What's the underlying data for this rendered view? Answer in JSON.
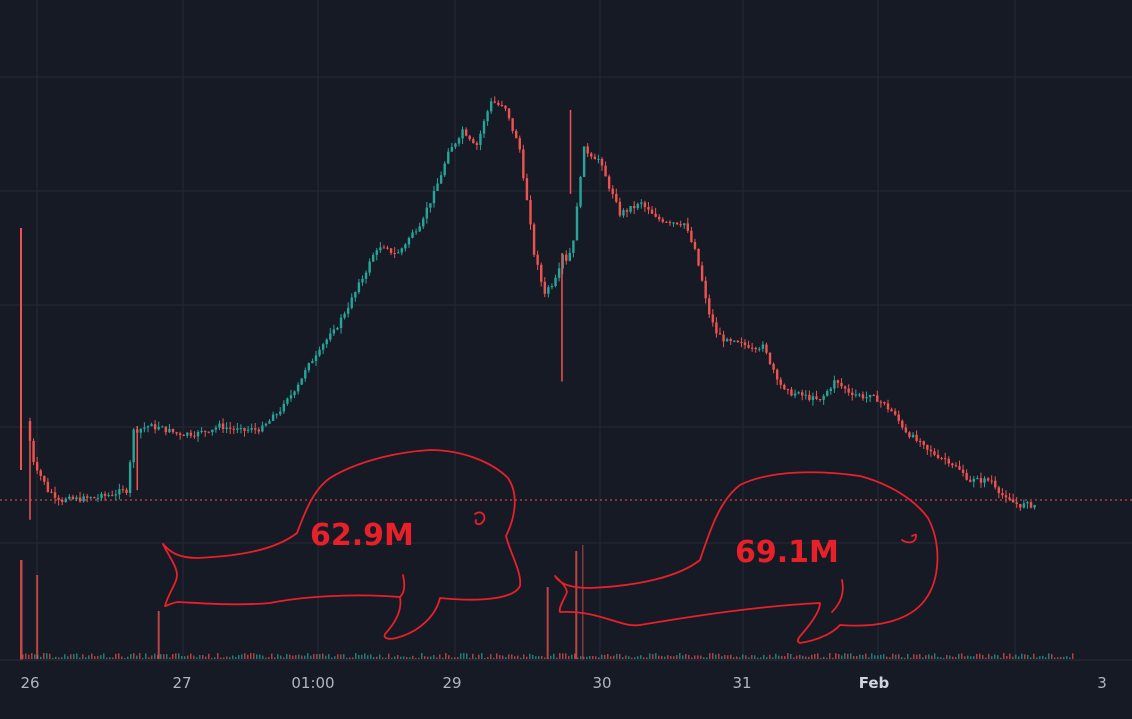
{
  "colors": {
    "background": "#161a25",
    "grid": "#242936",
    "up": "#26a69a",
    "down": "#ef5350",
    "price_line": "#ef5350",
    "annotation": "#e8202a",
    "axis_text": "#b2b5be",
    "axis_bg": "#1e222d"
  },
  "chart_data": {
    "type": "candlestick",
    "title": "",
    "xlabel": "",
    "ylabel": "",
    "x_ticks": [
      "26",
      "27",
      "01:00",
      "29",
      "30",
      "31",
      "Feb",
      "3"
    ],
    "bold_ticks": [
      "Feb"
    ],
    "y_axis_visible": false,
    "grid": true,
    "price_series": {
      "name": "",
      "x": [
        0.0,
        0.05,
        0.15,
        0.25,
        0.5,
        0.7,
        0.75,
        0.85,
        0.95,
        1.0,
        1.05,
        1.1,
        1.2,
        1.35,
        1.5,
        1.65,
        1.8,
        1.95,
        2.05,
        2.15,
        2.3,
        2.45,
        2.6,
        2.75,
        2.85,
        2.95,
        3.05,
        3.15,
        3.25,
        3.35,
        3.45,
        3.55,
        3.62,
        3.68,
        3.72,
        3.75,
        3.78,
        3.81,
        3.84,
        3.86,
        3.9,
        4.0,
        4.15,
        4.3,
        4.4,
        4.6,
        4.68,
        4.72,
        4.76,
        4.82,
        4.9,
        5.0,
        5.15,
        5.3,
        5.45,
        5.55,
        5.65,
        5.75,
        5.85,
        5.95,
        6.05,
        6.15,
        6.3,
        6.45,
        6.6,
        6.75,
        6.85,
        6.95,
        7.05
      ],
      "y": [
        50,
        42,
        36,
        34,
        34.5,
        36,
        48,
        49,
        48.5,
        48,
        47.5,
        47.5,
        47.5,
        49,
        48,
        48.5,
        53,
        60,
        65,
        68,
        76,
        85,
        84,
        90,
        96,
        104,
        109,
        106,
        115,
        113,
        105,
        84,
        76,
        78,
        81,
        84,
        82.5,
        85,
        89,
        97,
        105,
        103,
        92,
        94,
        91,
        90,
        84,
        79,
        73,
        68,
        66,
        65.5,
        65,
        56,
        55,
        54,
        58,
        56,
        55,
        54.5,
        52,
        48,
        44,
        42,
        38,
        38,
        34,
        33,
        33
      ]
    },
    "volume_series": {
      "name": "",
      "spikes": [
        {
          "x": 0.05,
          "value": 14
        },
        {
          "x": 0.9,
          "value": 8
        },
        {
          "x": 3.62,
          "value": 12
        },
        {
          "x": 3.82,
          "value": 18
        }
      ]
    },
    "annotations": [
      {
        "text": "62.9M",
        "shape": "whale"
      },
      {
        "text": "69.1M",
        "shape": "whale"
      }
    ]
  }
}
